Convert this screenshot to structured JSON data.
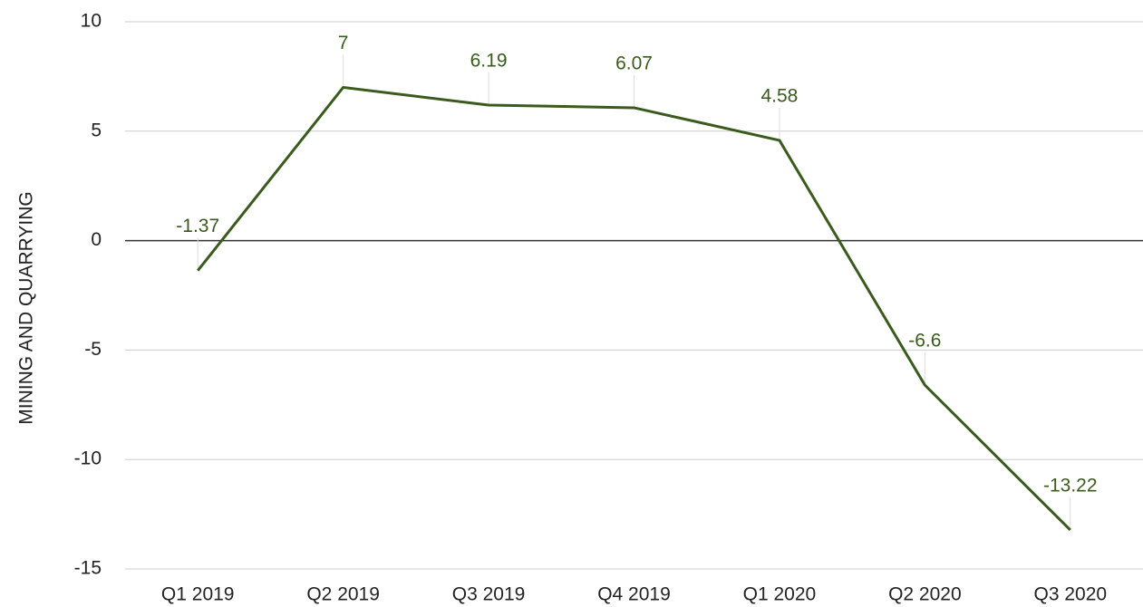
{
  "chart_data": {
    "type": "line",
    "y_axis_label": "MINING AND QUARRYING",
    "categories": [
      "Q1 2019",
      "Q2 2019",
      "Q3 2019",
      "Q4 2019",
      "Q1 2020",
      "Q2 2020",
      "Q3 2020"
    ],
    "series": [
      {
        "name": "MINING AND QUARRYING",
        "color": "#3a5a1e",
        "values": [
          -1.37,
          7,
          6.19,
          6.07,
          4.58,
          -6.6,
          -13.22
        ]
      }
    ],
    "ylim": [
      -15,
      10
    ],
    "yticks": [
      -15,
      -10,
      -5,
      0,
      5,
      10
    ],
    "grid": true,
    "data_labels": true
  }
}
